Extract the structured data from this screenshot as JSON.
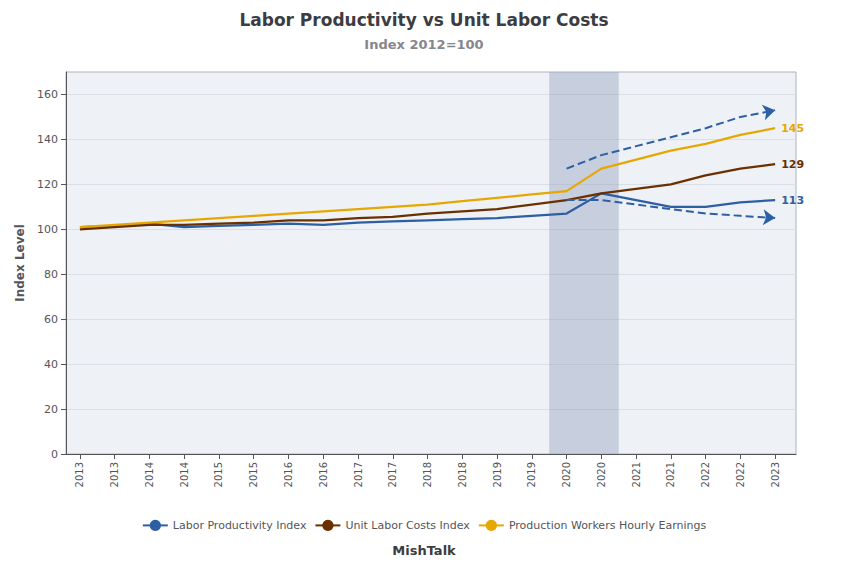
{
  "chart_data": {
    "type": "line",
    "title": "Labor Productivity vs Unit Labor Costs",
    "subtitle": "Index 2012=100",
    "ylabel": "Index Level",
    "watermark": "MishTalk",
    "shaded_region": [
      2019.75,
      2020.75
    ],
    "xlim": [
      2012.8,
      2023.3
    ],
    "xticks": [
      2013,
      {
        "value": 2013.5,
        "label": "2013"
      },
      2014,
      {
        "value": 2014.5,
        "label": "2014"
      },
      2015,
      {
        "value": 2015.5,
        "label": "2015"
      },
      2016,
      {
        "value": 2016.5,
        "label": "2016"
      },
      2017,
      {
        "value": 2017.5,
        "label": "2017"
      },
      2018,
      {
        "value": 2018.5,
        "label": "2018"
      },
      2019,
      {
        "value": 2019.5,
        "label": "2019"
      },
      2020,
      {
        "value": 2020.5,
        "label": "2020"
      },
      2021,
      {
        "value": 2021.5,
        "label": "2021"
      },
      2022,
      {
        "value": 2022.5,
        "label": "2022"
      },
      2023
    ],
    "ylim": [
      0,
      170
    ],
    "yticks": [
      0,
      20,
      40,
      60,
      80,
      100,
      120,
      140,
      160
    ],
    "grid": true,
    "legend": "bottom",
    "series": [
      {
        "name": "Labor Productivity Index",
        "color": "#2e5fa3",
        "end_label": "113",
        "x": [
          2013.0,
          2013.5,
          2014.0,
          2014.5,
          2015.0,
          2015.5,
          2016.0,
          2016.5,
          2017.0,
          2017.5,
          2018.0,
          2018.5,
          2019.0,
          2019.5,
          2020.0,
          2020.5,
          2021.0,
          2021.5,
          2022.0,
          2022.5,
          2023.0
        ],
        "values": [
          101,
          101.5,
          102.5,
          101,
          101.5,
          102,
          102.5,
          102,
          103,
          103.5,
          104,
          104.5,
          105,
          106,
          107,
          116,
          113,
          110,
          110,
          112,
          113
        ]
      },
      {
        "name": "Unit Labor Costs Index",
        "color": "#6b3000",
        "end_label": "129",
        "x": [
          2013.0,
          2013.5,
          2014.0,
          2014.5,
          2015.0,
          2015.5,
          2016.0,
          2016.5,
          2017.0,
          2017.5,
          2018.0,
          2018.5,
          2019.0,
          2019.5,
          2020.0,
          2020.5,
          2021.0,
          2021.5,
          2022.0,
          2022.5,
          2023.0
        ],
        "values": [
          100,
          101,
          102,
          102,
          102.5,
          103,
          104,
          104,
          105,
          105.5,
          107,
          108,
          109,
          111,
          113,
          116,
          118,
          120,
          124,
          127,
          129
        ]
      },
      {
        "name": "Production Workers Hourly Earnings",
        "color": "#e6a800",
        "end_label": "145",
        "x": [
          2013.0,
          2013.5,
          2014.0,
          2014.5,
          2015.0,
          2015.5,
          2016.0,
          2016.5,
          2017.0,
          2017.5,
          2018.0,
          2018.5,
          2019.0,
          2019.5,
          2020.0,
          2020.5,
          2021.0,
          2021.5,
          2022.0,
          2022.5,
          2023.0
        ],
        "values": [
          101,
          102,
          103,
          104,
          105,
          106,
          107,
          108,
          109,
          110,
          111,
          112.5,
          114,
          115.5,
          117,
          127,
          131,
          135,
          138,
          142,
          145
        ]
      },
      {
        "color": "#2e5fa3",
        "line_style": "dashed",
        "marker": "arrow",
        "x": [
          2020.0,
          2020.5,
          2021.0,
          2021.5,
          2022.0,
          2022.5,
          2023.0
        ],
        "values": [
          127,
          133,
          137,
          141,
          145,
          150,
          153
        ]
      },
      {
        "color": "#2e5fa3",
        "line_style": "dashed",
        "marker": "arrow",
        "x": [
          2020.0,
          2020.5,
          2021.0,
          2021.5,
          2022.0,
          2022.5,
          2023.0
        ],
        "values": [
          113,
          113,
          111,
          109,
          107,
          106,
          105
        ]
      }
    ]
  }
}
